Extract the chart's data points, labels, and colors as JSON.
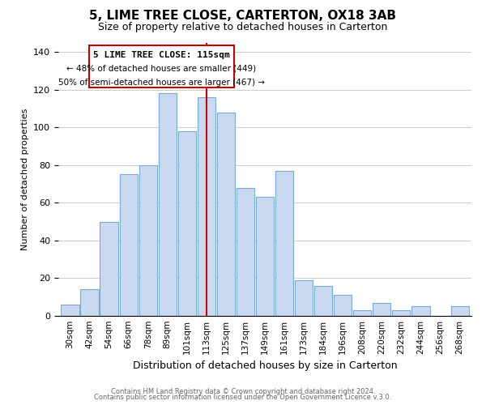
{
  "title": "5, LIME TREE CLOSE, CARTERTON, OX18 3AB",
  "subtitle": "Size of property relative to detached houses in Carterton",
  "xlabel": "Distribution of detached houses by size in Carterton",
  "ylabel": "Number of detached properties",
  "bar_labels": [
    "30sqm",
    "42sqm",
    "54sqm",
    "66sqm",
    "78sqm",
    "89sqm",
    "101sqm",
    "113sqm",
    "125sqm",
    "137sqm",
    "149sqm",
    "161sqm",
    "173sqm",
    "184sqm",
    "196sqm",
    "208sqm",
    "220sqm",
    "232sqm",
    "244sqm",
    "256sqm",
    "268sqm"
  ],
  "bar_values": [
    6,
    14,
    50,
    75,
    80,
    118,
    98,
    116,
    108,
    68,
    63,
    77,
    19,
    16,
    11,
    3,
    7,
    3,
    5,
    0,
    5
  ],
  "bar_color": "#c9d9f0",
  "bar_edge_color": "#7baad4",
  "vline_x_index": 7,
  "vline_color": "#cc0000",
  "annotation_title": "5 LIME TREE CLOSE: 115sqm",
  "annotation_line1": "← 48% of detached houses are smaller (449)",
  "annotation_line2": "50% of semi-detached houses are larger (467) →",
  "annotation_box_edge": "#cc0000",
  "ylim": [
    0,
    145
  ],
  "yticks": [
    0,
    20,
    40,
    60,
    80,
    100,
    120,
    140
  ],
  "footer1": "Contains HM Land Registry data © Crown copyright and database right 2024.",
  "footer2": "Contains public sector information licensed under the Open Government Licence v.3.0."
}
